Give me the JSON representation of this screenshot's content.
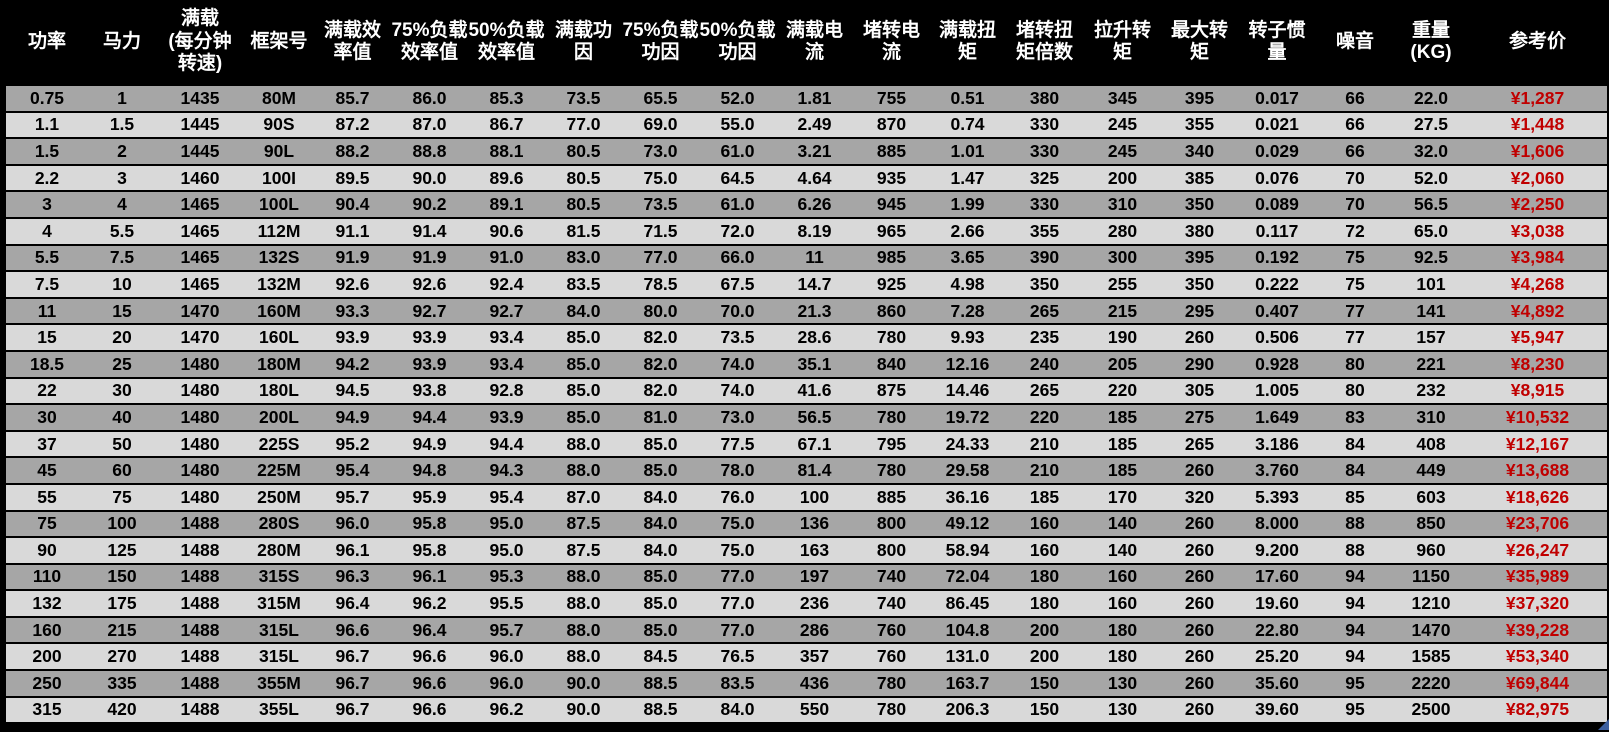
{
  "colors": {
    "background": "#000000",
    "header_text": "#ffffff",
    "row_odd": "#a6a6a6",
    "row_even": "#d9d9d9",
    "data_text": "#000000",
    "price_text": "#c00000",
    "selection_handle": "#3b5fa0"
  },
  "table": {
    "columns": [
      "功率",
      "马力",
      "满载\n(每分钟\n转速)",
      "框架号",
      "满载效\n率值",
      "75%负载\n效率值",
      "50%负载\n效率值",
      "满载功\n因",
      "75%负载\n功因",
      "50%负载\n功因",
      "满载电\n流",
      "堵转电\n流",
      "满载扭\n矩",
      "堵转扭\n矩倍数",
      "拉升转\n矩",
      "最大转\n矩",
      "转子惯\n量",
      "噪音",
      "重量\n(KG)",
      "参考价"
    ],
    "rows": [
      [
        "0.75",
        "1",
        "1435",
        "80M",
        "85.7",
        "86.0",
        "85.3",
        "73.5",
        "65.5",
        "52.0",
        "1.81",
        "755",
        "0.51",
        "380",
        "345",
        "395",
        "0.017",
        "66",
        "22.0",
        "¥1,287"
      ],
      [
        "1.1",
        "1.5",
        "1445",
        "90S",
        "87.2",
        "87.0",
        "86.7",
        "77.0",
        "69.0",
        "55.0",
        "2.49",
        "870",
        "0.74",
        "330",
        "245",
        "355",
        "0.021",
        "66",
        "27.5",
        "¥1,448"
      ],
      [
        "1.5",
        "2",
        "1445",
        "90L",
        "88.2",
        "88.8",
        "88.1",
        "80.5",
        "73.0",
        "61.0",
        "3.21",
        "885",
        "1.01",
        "330",
        "245",
        "340",
        "0.029",
        "66",
        "32.0",
        "¥1,606"
      ],
      [
        "2.2",
        "3",
        "1460",
        "100I",
        "89.5",
        "90.0",
        "89.6",
        "80.5",
        "75.0",
        "64.5",
        "4.64",
        "935",
        "1.47",
        "325",
        "200",
        "385",
        "0.076",
        "70",
        "52.0",
        "¥2,060"
      ],
      [
        "3",
        "4",
        "1465",
        "100L",
        "90.4",
        "90.2",
        "89.1",
        "80.5",
        "73.5",
        "61.0",
        "6.26",
        "945",
        "1.99",
        "330",
        "310",
        "350",
        "0.089",
        "70",
        "56.5",
        "¥2,250"
      ],
      [
        "4",
        "5.5",
        "1465",
        "112M",
        "91.1",
        "91.4",
        "90.6",
        "81.5",
        "71.5",
        "72.0",
        "8.19",
        "965",
        "2.66",
        "355",
        "280",
        "380",
        "0.117",
        "72",
        "65.0",
        "¥3,038"
      ],
      [
        "5.5",
        "7.5",
        "1465",
        "132S",
        "91.9",
        "91.9",
        "91.0",
        "83.0",
        "77.0",
        "66.0",
        "11",
        "985",
        "3.65",
        "390",
        "300",
        "395",
        "0.192",
        "75",
        "92.5",
        "¥3,984"
      ],
      [
        "7.5",
        "10",
        "1465",
        "132M",
        "92.6",
        "92.6",
        "92.4",
        "83.5",
        "78.5",
        "67.5",
        "14.7",
        "925",
        "4.98",
        "350",
        "255",
        "350",
        "0.222",
        "75",
        "101",
        "¥4,268"
      ],
      [
        "11",
        "15",
        "1470",
        "160M",
        "93.3",
        "92.7",
        "92.7",
        "84.0",
        "80.0",
        "70.0",
        "21.3",
        "860",
        "7.28",
        "265",
        "215",
        "295",
        "0.407",
        "77",
        "141",
        "¥4,892"
      ],
      [
        "15",
        "20",
        "1470",
        "160L",
        "93.9",
        "93.9",
        "93.4",
        "85.0",
        "82.0",
        "73.5",
        "28.6",
        "780",
        "9.93",
        "235",
        "190",
        "260",
        "0.506",
        "77",
        "157",
        "¥5,947"
      ],
      [
        "18.5",
        "25",
        "1480",
        "180M",
        "94.2",
        "93.9",
        "93.4",
        "85.0",
        "82.0",
        "74.0",
        "35.1",
        "840",
        "12.16",
        "240",
        "205",
        "290",
        "0.928",
        "80",
        "221",
        "¥8,230"
      ],
      [
        "22",
        "30",
        "1480",
        "180L",
        "94.5",
        "93.8",
        "92.8",
        "85.0",
        "82.0",
        "74.0",
        "41.6",
        "875",
        "14.46",
        "265",
        "220",
        "305",
        "1.005",
        "80",
        "232",
        "¥8,915"
      ],
      [
        "30",
        "40",
        "1480",
        "200L",
        "94.9",
        "94.4",
        "93.9",
        "85.0",
        "81.0",
        "73.0",
        "56.5",
        "780",
        "19.72",
        "220",
        "185",
        "275",
        "1.649",
        "83",
        "310",
        "¥10,532"
      ],
      [
        "37",
        "50",
        "1480",
        "225S",
        "95.2",
        "94.9",
        "94.4",
        "88.0",
        "85.0",
        "77.5",
        "67.1",
        "795",
        "24.33",
        "210",
        "185",
        "265",
        "3.186",
        "84",
        "408",
        "¥12,167"
      ],
      [
        "45",
        "60",
        "1480",
        "225M",
        "95.4",
        "94.8",
        "94.3",
        "88.0",
        "85.0",
        "78.0",
        "81.4",
        "780",
        "29.58",
        "210",
        "185",
        "260",
        "3.760",
        "84",
        "449",
        "¥13,688"
      ],
      [
        "55",
        "75",
        "1480",
        "250M",
        "95.7",
        "95.9",
        "95.4",
        "87.0",
        "84.0",
        "76.0",
        "100",
        "885",
        "36.16",
        "185",
        "170",
        "320",
        "5.393",
        "85",
        "603",
        "¥18,626"
      ],
      [
        "75",
        "100",
        "1488",
        "280S",
        "96.0",
        "95.8",
        "95.0",
        "87.5",
        "84.0",
        "75.0",
        "136",
        "800",
        "49.12",
        "160",
        "140",
        "260",
        "8.000",
        "88",
        "850",
        "¥23,706"
      ],
      [
        "90",
        "125",
        "1488",
        "280M",
        "96.1",
        "95.8",
        "95.0",
        "87.5",
        "84.0",
        "75.0",
        "163",
        "800",
        "58.94",
        "160",
        "140",
        "260",
        "9.200",
        "88",
        "960",
        "¥26,247"
      ],
      [
        "110",
        "150",
        "1488",
        "315S",
        "96.3",
        "96.1",
        "95.3",
        "88.0",
        "85.0",
        "77.0",
        "197",
        "740",
        "72.04",
        "180",
        "160",
        "260",
        "17.60",
        "94",
        "1150",
        "¥35,989"
      ],
      [
        "132",
        "175",
        "1488",
        "315M",
        "96.4",
        "96.2",
        "95.5",
        "88.0",
        "85.0",
        "77.0",
        "236",
        "740",
        "86.45",
        "180",
        "160",
        "260",
        "19.60",
        "94",
        "1210",
        "¥37,320"
      ],
      [
        "160",
        "215",
        "1488",
        "315L",
        "96.6",
        "96.4",
        "95.7",
        "88.0",
        "85.0",
        "77.0",
        "286",
        "760",
        "104.8",
        "200",
        "180",
        "260",
        "22.80",
        "94",
        "1470",
        "¥39,228"
      ],
      [
        "200",
        "270",
        "1488",
        "315L",
        "96.7",
        "96.6",
        "96.0",
        "88.0",
        "84.5",
        "76.5",
        "357",
        "760",
        "131.0",
        "200",
        "180",
        "260",
        "25.20",
        "94",
        "1585",
        "¥53,340"
      ],
      [
        "250",
        "335",
        "1488",
        "355M",
        "96.7",
        "96.6",
        "96.0",
        "90.0",
        "88.5",
        "83.5",
        "436",
        "780",
        "163.7",
        "150",
        "130",
        "260",
        "35.60",
        "95",
        "2220",
        "¥69,844"
      ],
      [
        "315",
        "420",
        "1488",
        "355L",
        "96.7",
        "96.6",
        "96.2",
        "90.0",
        "88.5",
        "84.0",
        "550",
        "780",
        "206.3",
        "150",
        "130",
        "260",
        "39.60",
        "95",
        "2500",
        "¥82,975"
      ]
    ]
  }
}
